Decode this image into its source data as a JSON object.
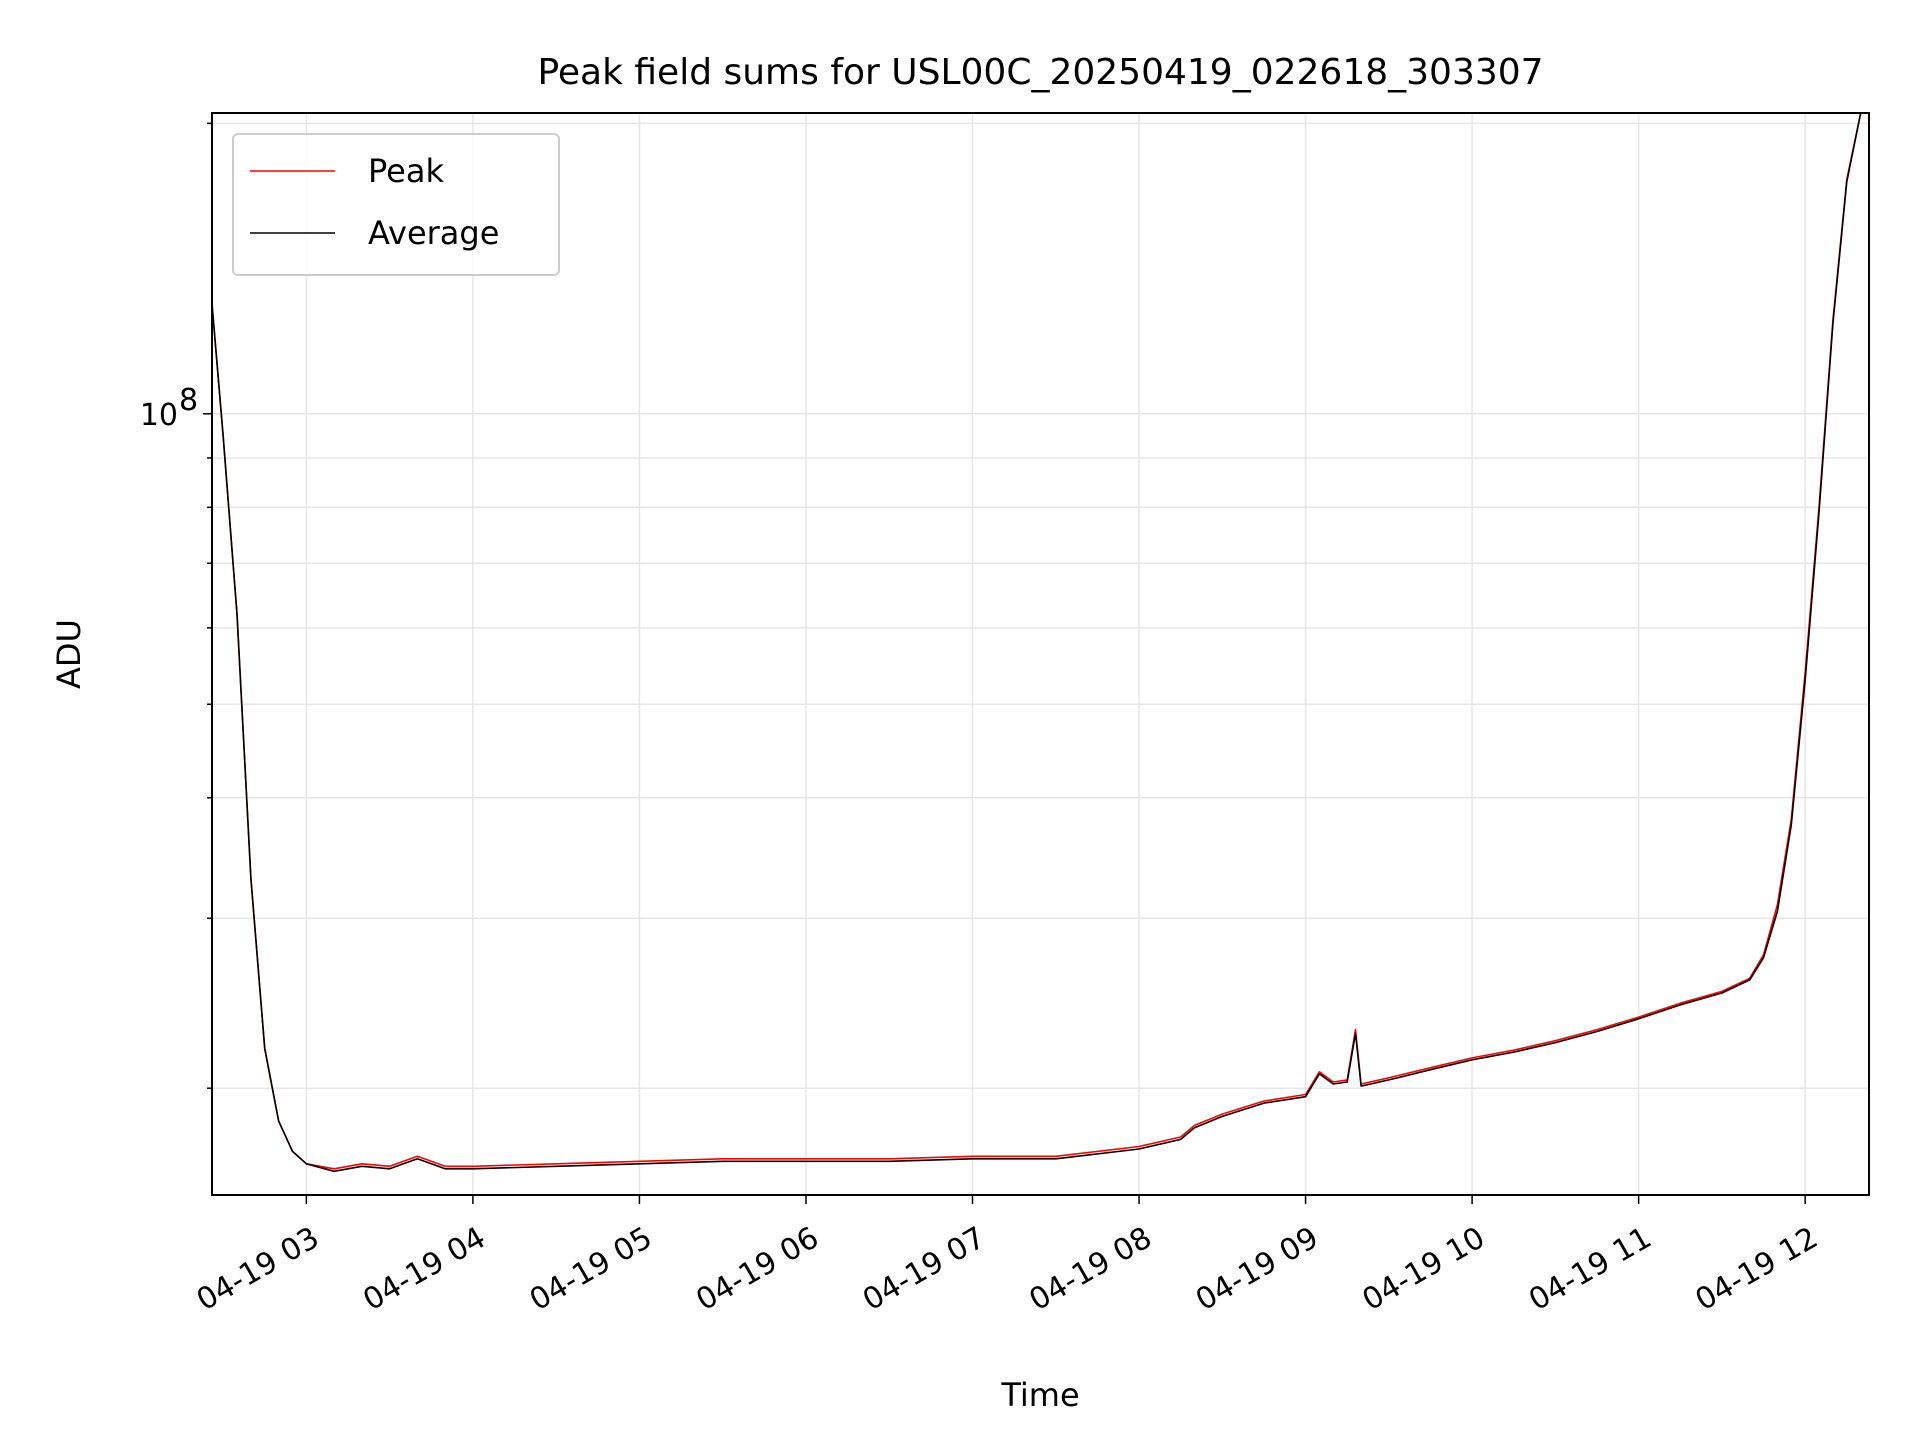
{
  "chart_data": {
    "type": "line",
    "title": "Peak field sums for USL00C_20250419_022618_303307",
    "xlabel": "Time",
    "ylabel": "ADU",
    "y_scale": "log",
    "xlim": [
      "04-19 02:26",
      "04-19 12:23"
    ],
    "ylim": [
      15500000,
      205000000
    ],
    "x_tick_labels": [
      "04-19 03",
      "04-19 04",
      "04-19 05",
      "04-19 06",
      "04-19 07",
      "04-19 08",
      "04-19 09",
      "04-19 10",
      "04-19 11",
      "04-19 12"
    ],
    "y_tick_labels": [
      {
        "base": "10",
        "exp": "8"
      }
    ],
    "grid": true,
    "legend_position": "top-left",
    "colors": {
      "Peak": "#ff0000",
      "Average": "#000000"
    },
    "series": [
      {
        "name": "Peak",
        "x": [
          "04-19 02:26",
          "04-19 02:30",
          "04-19 02:35",
          "04-19 02:40",
          "04-19 02:45",
          "04-19 02:50",
          "04-19 02:55",
          "04-19 03:00",
          "04-19 03:10",
          "04-19 03:20",
          "04-19 03:30",
          "04-19 03:40",
          "04-19 03:45",
          "04-19 03:50",
          "04-19 04:00",
          "04-19 04:30",
          "04-19 05:00",
          "04-19 05:30",
          "04-19 06:00",
          "04-19 06:30",
          "04-19 07:00",
          "04-19 07:30",
          "04-19 08:00",
          "04-19 08:15",
          "04-19 08:20",
          "04-19 08:30",
          "04-19 08:45",
          "04-19 09:00",
          "04-19 09:05",
          "04-19 09:10",
          "04-19 09:15",
          "04-19 09:18",
          "04-19 09:20",
          "04-19 09:30",
          "04-19 09:45",
          "04-19 10:00",
          "04-19 10:15",
          "04-19 10:30",
          "04-19 10:45",
          "04-19 11:00",
          "04-19 11:15",
          "04-19 11:30",
          "04-19 11:40",
          "04-19 11:45",
          "04-19 11:50",
          "04-19 11:55",
          "04-19 12:00",
          "04-19 12:05",
          "04-19 12:10",
          "04-19 12:15",
          "04-19 12:20",
          "04-19 12:23"
        ],
        "values": [
          130000000,
          95000000,
          62000000,
          33000000,
          22000000,
          18500000,
          17200000,
          16700000,
          16500000,
          16700000,
          16600000,
          17000000,
          16800000,
          16600000,
          16600000,
          16700000,
          16800000,
          16900000,
          16900000,
          16900000,
          17000000,
          17000000,
          17400000,
          17800000,
          18300000,
          18800000,
          19400000,
          19700000,
          20800000,
          20300000,
          20400000,
          23000000,
          20200000,
          20500000,
          21000000,
          21500000,
          21900000,
          22400000,
          23000000,
          23700000,
          24500000,
          25200000,
          26000000,
          27500000,
          31000000,
          38000000,
          54000000,
          80000000,
          125000000,
          175000000,
          205000000,
          205000000
        ]
      },
      {
        "name": "Average",
        "x": [
          "04-19 02:26",
          "04-19 02:30",
          "04-19 02:35",
          "04-19 02:40",
          "04-19 02:45",
          "04-19 02:50",
          "04-19 02:55",
          "04-19 03:00",
          "04-19 03:10",
          "04-19 03:20",
          "04-19 03:30",
          "04-19 03:40",
          "04-19 03:45",
          "04-19 03:50",
          "04-19 04:00",
          "04-19 04:30",
          "04-19 05:00",
          "04-19 05:30",
          "04-19 06:00",
          "04-19 06:30",
          "04-19 07:00",
          "04-19 07:30",
          "04-19 08:00",
          "04-19 08:15",
          "04-19 08:20",
          "04-19 08:30",
          "04-19 08:45",
          "04-19 09:00",
          "04-19 09:05",
          "04-19 09:10",
          "04-19 09:15",
          "04-19 09:18",
          "04-19 09:20",
          "04-19 09:30",
          "04-19 09:45",
          "04-19 10:00",
          "04-19 10:15",
          "04-19 10:30",
          "04-19 10:45",
          "04-19 11:00",
          "04-19 11:15",
          "04-19 11:30",
          "04-19 11:40",
          "04-19 11:45",
          "04-19 11:50",
          "04-19 11:55",
          "04-19 12:00",
          "04-19 12:05",
          "04-19 12:10",
          "04-19 12:15",
          "04-19 12:20",
          "04-19 12:23"
        ],
        "values": [
          130000000,
          95000000,
          62000000,
          33000000,
          22000000,
          18500000,
          17200000,
          16700000,
          16400000,
          16600000,
          16500000,
          16900000,
          16700000,
          16500000,
          16500000,
          16600000,
          16700000,
          16800000,
          16800000,
          16800000,
          16900000,
          16900000,
          17300000,
          17700000,
          18200000,
          18700000,
          19300000,
          19600000,
          20700000,
          20200000,
          20300000,
          22800000,
          20100000,
          20400000,
          20900000,
          21400000,
          21800000,
          22300000,
          22900000,
          23600000,
          24400000,
          25100000,
          25900000,
          27300000,
          30500000,
          37500000,
          53000000,
          79000000,
          124000000,
          174000000,
          205000000,
          205000000
        ]
      }
    ]
  }
}
